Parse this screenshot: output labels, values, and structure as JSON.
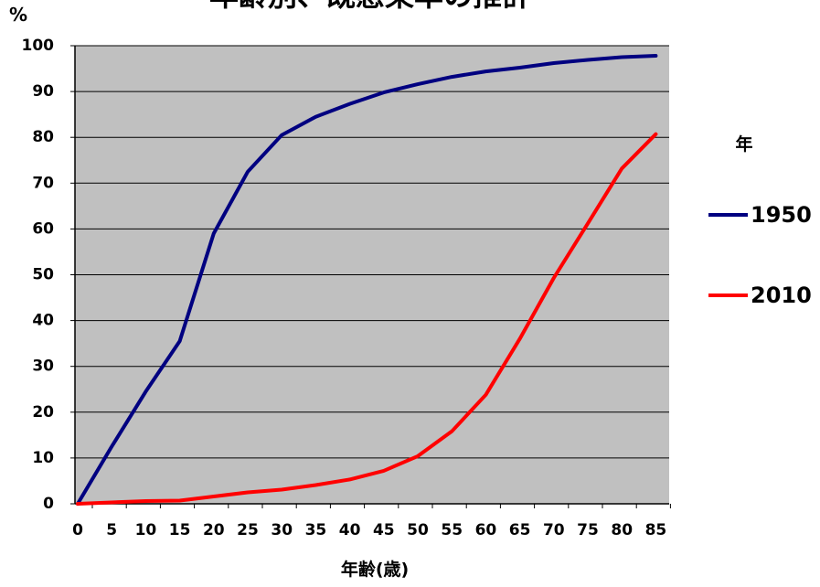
{
  "chart_data": {
    "type": "line",
    "title": "年齢別、既感染率の推計",
    "ylabel": "%",
    "xlabel": "年齢(歳)",
    "x": [
      0,
      5,
      10,
      15,
      20,
      25,
      30,
      35,
      40,
      45,
      50,
      55,
      60,
      65,
      70,
      75,
      80,
      85
    ],
    "x_tick_labels": [
      "0",
      "5",
      "10",
      "15",
      "20",
      "25",
      "30",
      "35",
      "40",
      "45",
      "50",
      "55",
      "60",
      "65",
      "70",
      "75",
      "80",
      "85"
    ],
    "ylim": [
      0,
      100
    ],
    "y_ticks": [
      "0",
      "10",
      "20",
      "30",
      "40",
      "50",
      "60",
      "70",
      "80",
      "90",
      "100"
    ],
    "grid": true,
    "background": "#c0c0c0",
    "legend": {
      "title": "年",
      "placement": "right"
    },
    "series": [
      {
        "name": "1950",
        "color": "#000080",
        "values": [
          0,
          12.5,
          24.5,
          35.5,
          59,
          72.5,
          80.5,
          84.5,
          87.3,
          89.8,
          91.6,
          93.2,
          94.4,
          95.2,
          96.2,
          96.9,
          97.5,
          97.8
        ]
      },
      {
        "name": "2010",
        "color": "#ff0000",
        "values": [
          0,
          0.3,
          0.6,
          0.7,
          1.6,
          2.5,
          3.1,
          4.1,
          5.3,
          7.2,
          10.4,
          15.8,
          23.8,
          36,
          49.3,
          61.2,
          73.2,
          80.7
        ]
      }
    ]
  }
}
